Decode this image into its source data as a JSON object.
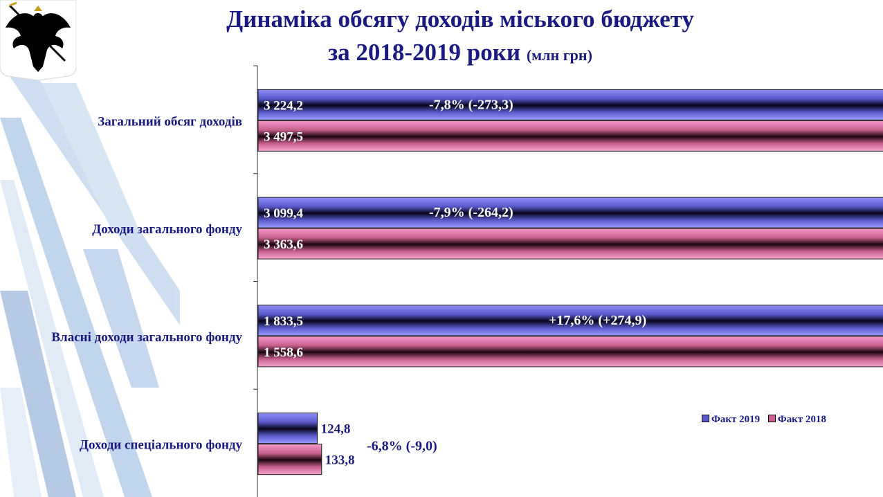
{
  "header": {
    "title_line1": "Динаміка обсягу доходів міського бюджету",
    "title_line2": "за 2018-2019 роки",
    "title_unit": "(млн грн)"
  },
  "emblem": {
    "icon": "coat-of-arms-eagle-icon"
  },
  "chart_data": {
    "type": "bar",
    "orientation": "horizontal",
    "categories": [
      "Загальний обсяг доходів",
      "Доходи загального фонду",
      "Власні доходи загального фонду",
      "Доходи спеціального фонду"
    ],
    "series": [
      {
        "name": "Факт 2019",
        "color": "#7b7bf0",
        "values": [
          3224.2,
          3099.4,
          1833.5,
          124.8
        ],
        "labels": [
          "3 224,2",
          "3 099,4",
          "1 833,5",
          "124,8"
        ]
      },
      {
        "name": "Факт 2018",
        "color": "#f07bb5",
        "values": [
          3497.5,
          3363.6,
          1558.6,
          133.8
        ],
        "labels": [
          "3 497,5",
          "3 363,6",
          "1 558,6",
          "133,8"
        ]
      }
    ],
    "annotations": [
      "-7,8% (-273,3)",
      "-7,9% (-264,2)",
      "+17,6% (+274,9)",
      "-6,8% (-9,0)"
    ],
    "xlim": [
      0,
      3800
    ],
    "grid": false,
    "legend_position": "bottom-right"
  }
}
